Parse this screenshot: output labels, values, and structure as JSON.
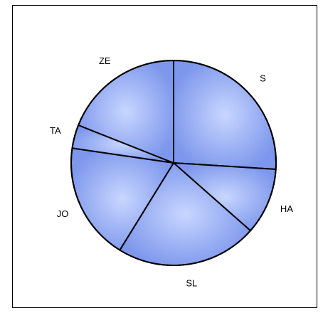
{
  "chart_data": {
    "type": "pie",
    "title": "",
    "categories": [
      "S",
      "HA",
      "SL",
      "JO",
      "TA",
      "ZE"
    ],
    "values": [
      26.0,
      10.5,
      22.3,
      18.5,
      3.7,
      19.0
    ],
    "start_angle_deg": -90,
    "direction": "clockwise",
    "fill_center": "#c8d6ff",
    "fill_edge": "#7d97ec",
    "stroke": "#000000"
  }
}
